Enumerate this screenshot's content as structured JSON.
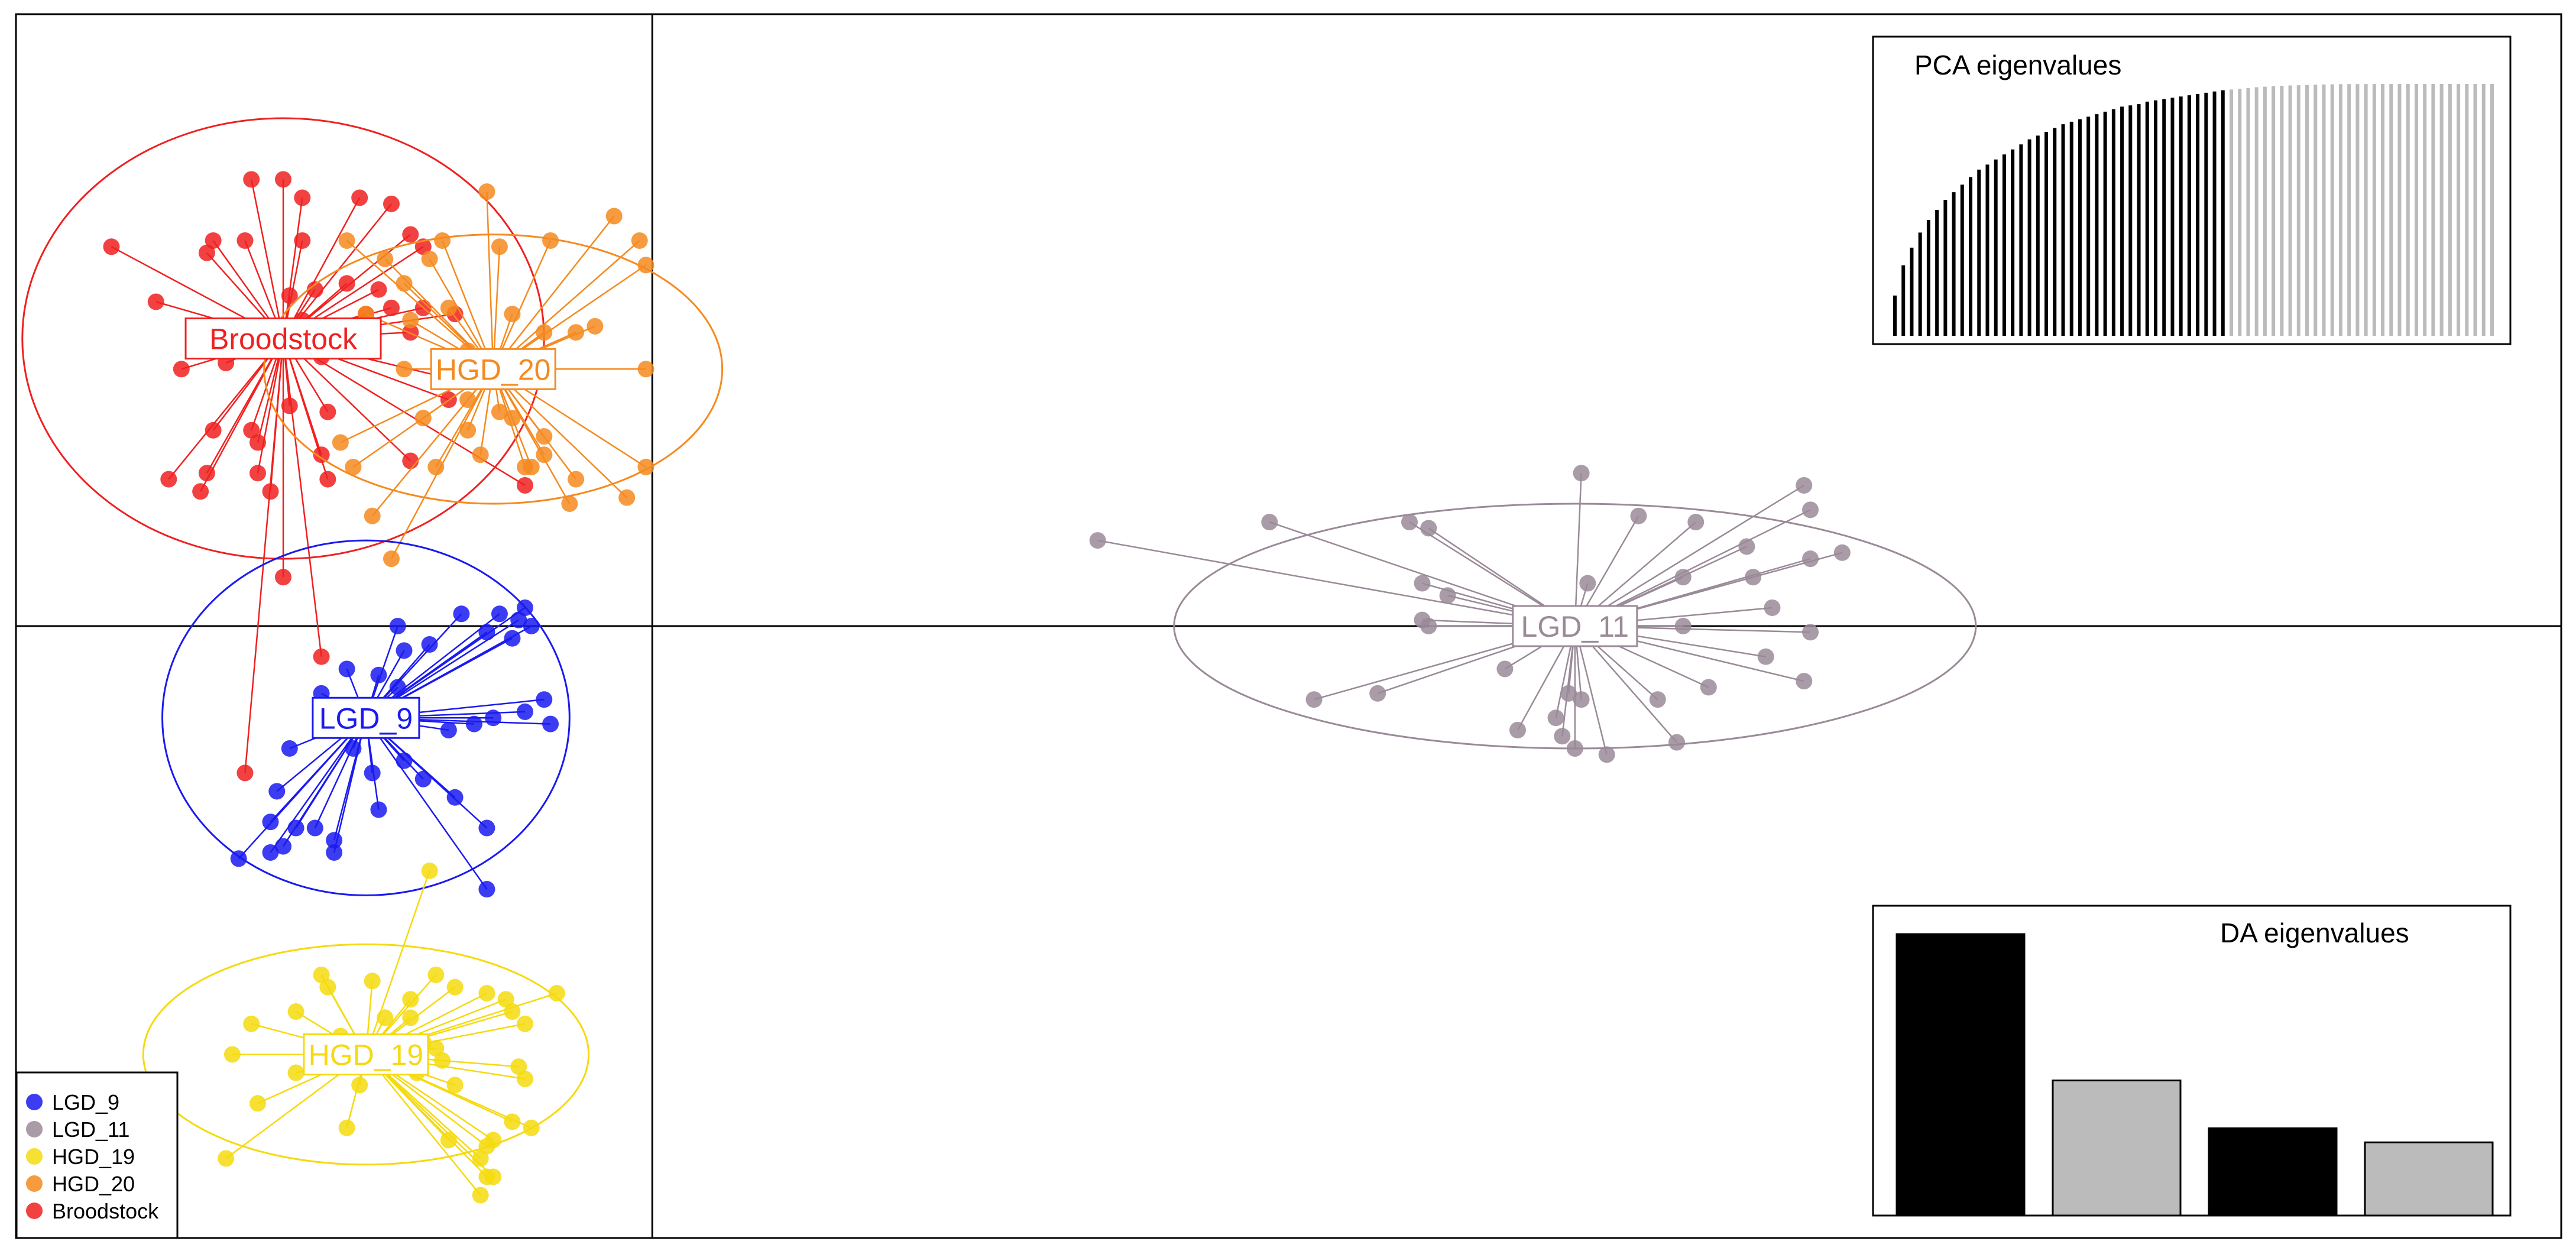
{
  "chart_data": {
    "type": "scatter",
    "title": "",
    "xlabel": "",
    "ylabel": "",
    "grid": false,
    "xlim": [
      -10,
      30
    ],
    "ylim": [
      -10,
      10
    ],
    "axes_cross": [
      0,
      0
    ],
    "legend_position": "bottom-left",
    "series": [
      {
        "name": "LGD_9",
        "color": "#1a1af0",
        "centroid": [
          -4.5,
          -1.5
        ],
        "ellipse_radii": [
          3.2,
          2.9
        ],
        "points": [
          [
            -2.1,
            0.1
          ],
          [
            -2.0,
            0.3
          ],
          [
            -1.9,
            0.0
          ],
          [
            -2.2,
            -0.2
          ],
          [
            -2.4,
            0.2
          ],
          [
            -2.6,
            -0.1
          ],
          [
            -3.0,
            0.2
          ],
          [
            -3.5,
            -0.3
          ],
          [
            -3.9,
            -0.4
          ],
          [
            -4.0,
            0.0
          ],
          [
            -4.3,
            -0.8
          ],
          [
            -4.0,
            -1.0
          ],
          [
            -4.8,
            -0.7
          ],
          [
            -5.2,
            -1.1
          ],
          [
            -4.9,
            -1.4
          ],
          [
            -4.5,
            -1.5
          ],
          [
            -3.2,
            -1.7
          ],
          [
            -2.8,
            -1.6
          ],
          [
            -2.5,
            -1.5
          ],
          [
            -2.0,
            -1.4
          ],
          [
            -1.7,
            -1.2
          ],
          [
            -1.6,
            -1.6
          ],
          [
            -3.9,
            -2.2
          ],
          [
            -4.4,
            -2.4
          ],
          [
            -5.7,
            -2.0
          ],
          [
            -5.9,
            -2.7
          ],
          [
            -6.0,
            -3.2
          ],
          [
            -5.6,
            -3.3
          ],
          [
            -5.3,
            -3.3
          ],
          [
            -5.0,
            -3.5
          ],
          [
            -4.3,
            -3.0
          ],
          [
            -3.6,
            -2.5
          ],
          [
            -3.1,
            -2.8
          ],
          [
            -2.6,
            -3.3
          ],
          [
            -2.6,
            -4.3
          ],
          [
            -5.8,
            -3.6
          ],
          [
            -5.0,
            -3.7
          ],
          [
            -6.0,
            -3.7
          ],
          [
            -6.5,
            -3.8
          ],
          [
            -4.7,
            -2.0
          ]
        ]
      },
      {
        "name": "LGD_11",
        "color": "#9a8a98",
        "centroid": [
          14.5,
          0.0
        ],
        "ellipse_radii": [
          6.3,
          2.0
        ],
        "points": [
          [
            7.0,
            1.4
          ],
          [
            9.7,
            1.7
          ],
          [
            11.9,
            1.7
          ],
          [
            12.2,
            1.6
          ],
          [
            14.6,
            2.5
          ],
          [
            15.5,
            1.8
          ],
          [
            16.4,
            1.7
          ],
          [
            17.2,
            1.3
          ],
          [
            18.1,
            2.3
          ],
          [
            18.2,
            1.9
          ],
          [
            18.7,
            1.2
          ],
          [
            18.2,
            1.1
          ],
          [
            17.3,
            0.8
          ],
          [
            16.2,
            0.8
          ],
          [
            14.7,
            0.7
          ],
          [
            12.1,
            0.7
          ],
          [
            12.5,
            0.5
          ],
          [
            12.1,
            0.1
          ],
          [
            12.2,
            0.0
          ],
          [
            16.2,
            0.0
          ],
          [
            17.6,
            0.3
          ],
          [
            18.2,
            -0.1
          ],
          [
            17.5,
            -0.5
          ],
          [
            18.1,
            -0.9
          ],
          [
            16.6,
            -1.0
          ],
          [
            15.8,
            -1.2
          ],
          [
            14.4,
            -1.1
          ],
          [
            14.6,
            -1.2
          ],
          [
            14.3,
            -1.8
          ],
          [
            14.2,
            -1.5
          ],
          [
            13.6,
            -1.7
          ],
          [
            11.4,
            -1.1
          ],
          [
            10.4,
            -1.2
          ],
          [
            15.0,
            -2.1
          ],
          [
            16.1,
            -1.9
          ],
          [
            13.4,
            -0.7
          ],
          [
            14.5,
            -2.0
          ]
        ]
      },
      {
        "name": "HGD_19",
        "color": "#f5da0e",
        "centroid": [
          -4.5,
          -7.0
        ],
        "ellipse_radii": [
          3.5,
          1.8
        ],
        "points": [
          [
            -3.5,
            -4.0
          ],
          [
            -5.2,
            -5.7
          ],
          [
            -5.1,
            -5.9
          ],
          [
            -4.4,
            -5.8
          ],
          [
            -3.4,
            -5.7
          ],
          [
            -3.8,
            -6.1
          ],
          [
            -3.1,
            -5.9
          ],
          [
            -2.6,
            -6.0
          ],
          [
            -2.3,
            -6.1
          ],
          [
            -1.5,
            -6.0
          ],
          [
            -2.2,
            -6.3
          ],
          [
            -2.0,
            -6.5
          ],
          [
            -3.8,
            -6.4
          ],
          [
            -4.2,
            -6.4
          ],
          [
            -5.6,
            -6.3
          ],
          [
            -6.3,
            -6.5
          ],
          [
            -4.9,
            -6.7
          ],
          [
            -3.6,
            -6.8
          ],
          [
            -3.4,
            -6.9
          ],
          [
            -3.3,
            -7.1
          ],
          [
            -2.1,
            -7.2
          ],
          [
            -3.1,
            -7.5
          ],
          [
            -3.7,
            -7.3
          ],
          [
            -4.6,
            -7.5
          ],
          [
            -5.6,
            -7.3
          ],
          [
            -6.6,
            -7.0
          ],
          [
            -6.2,
            -7.8
          ],
          [
            -4.8,
            -8.2
          ],
          [
            -3.2,
            -8.4
          ],
          [
            -2.6,
            -8.5
          ],
          [
            -1.9,
            -8.2
          ],
          [
            -6.7,
            -8.7
          ],
          [
            -2.6,
            -9.0
          ],
          [
            -2.7,
            -9.3
          ],
          [
            -2.7,
            -8.7
          ],
          [
            -2.5,
            -9.0
          ],
          [
            -2.5,
            -8.4
          ],
          [
            -2.2,
            -8.1
          ],
          [
            -2.0,
            -7.4
          ]
        ]
      },
      {
        "name": "HGD_20",
        "color": "#f58a1f",
        "centroid": [
          -2.5,
          4.2
        ],
        "ellipse_radii": [
          3.6,
          2.2
        ],
        "points": [
          [
            -2.6,
            7.1
          ],
          [
            -0.6,
            6.7
          ],
          [
            -0.2,
            6.3
          ],
          [
            -0.1,
            5.9
          ],
          [
            -3.3,
            6.3
          ],
          [
            -2.4,
            6.2
          ],
          [
            -1.6,
            6.3
          ],
          [
            -4.8,
            6.3
          ],
          [
            -3.5,
            6.0
          ],
          [
            -4.2,
            6.0
          ],
          [
            -3.9,
            5.6
          ],
          [
            -0.9,
            4.9
          ],
          [
            -1.2,
            4.8
          ],
          [
            -1.7,
            4.8
          ],
          [
            -2.2,
            5.1
          ],
          [
            -4.5,
            5.1
          ],
          [
            -3.2,
            5.2
          ],
          [
            -3.8,
            5.0
          ],
          [
            -2.9,
            4.5
          ],
          [
            -2.6,
            4.4
          ],
          [
            -2.5,
            4.3
          ],
          [
            -3.2,
            4.2
          ],
          [
            -3.9,
            4.2
          ],
          [
            -0.1,
            4.2
          ],
          [
            -2.9,
            3.7
          ],
          [
            -2.4,
            3.5
          ],
          [
            -2.2,
            3.4
          ],
          [
            -3.6,
            3.4
          ],
          [
            -2.9,
            3.2
          ],
          [
            -1.7,
            3.1
          ],
          [
            -4.9,
            3.0
          ],
          [
            -3.4,
            2.6
          ],
          [
            -2.7,
            2.8
          ],
          [
            -1.7,
            2.8
          ],
          [
            -1.9,
            2.6
          ],
          [
            -4.7,
            2.6
          ],
          [
            -1.2,
            2.4
          ],
          [
            -1.3,
            2.0
          ],
          [
            -4.4,
            1.8
          ],
          [
            -2.0,
            2.6
          ],
          [
            -0.1,
            2.6
          ],
          [
            -0.4,
            2.1
          ],
          [
            -4.1,
            1.1
          ]
        ]
      },
      {
        "name": "Broodstock",
        "color": "#f02020",
        "centroid": [
          -5.8,
          4.7
        ],
        "ellipse_radii": [
          4.1,
          3.6
        ],
        "points": [
          [
            -8.5,
            6.2
          ],
          [
            -6.3,
            7.3
          ],
          [
            -5.8,
            7.3
          ],
          [
            -5.5,
            7.0
          ],
          [
            -4.6,
            7.0
          ],
          [
            -4.1,
            6.9
          ],
          [
            -6.9,
            6.3
          ],
          [
            -6.4,
            6.3
          ],
          [
            -7.0,
            6.1
          ],
          [
            -5.5,
            6.3
          ],
          [
            -3.8,
            6.4
          ],
          [
            -3.6,
            6.2
          ],
          [
            -4.8,
            5.6
          ],
          [
            -4.3,
            5.5
          ],
          [
            -5.3,
            5.5
          ],
          [
            -5.7,
            5.4
          ],
          [
            -5.5,
            5.0
          ],
          [
            -4.1,
            5.2
          ],
          [
            -7.8,
            5.3
          ],
          [
            -4.5,
            5.1
          ],
          [
            -3.6,
            5.2
          ],
          [
            -3.1,
            5.1
          ],
          [
            -3.8,
            4.8
          ],
          [
            -6.5,
            4.8
          ],
          [
            -5.6,
            4.7
          ],
          [
            -7.4,
            4.2
          ],
          [
            -6.7,
            4.3
          ],
          [
            -5.2,
            4.4
          ],
          [
            -3.0,
            4.0
          ],
          [
            -3.2,
            3.7
          ],
          [
            -5.7,
            3.6
          ],
          [
            -5.1,
            3.5
          ],
          [
            -6.9,
            3.2
          ],
          [
            -6.3,
            3.2
          ],
          [
            -6.2,
            3.0
          ],
          [
            -7.0,
            2.5
          ],
          [
            -5.2,
            2.8
          ],
          [
            -3.8,
            2.7
          ],
          [
            -5.1,
            2.4
          ],
          [
            -6.0,
            2.2
          ],
          [
            -6.2,
            2.5
          ],
          [
            -7.6,
            2.4
          ],
          [
            -7.1,
            2.2
          ],
          [
            -2.0,
            2.3
          ],
          [
            -5.8,
            0.8
          ],
          [
            -5.2,
            -0.5
          ],
          [
            -6.4,
            -2.4
          ]
        ]
      }
    ],
    "insets": [
      {
        "title": "PCA eigenvalues",
        "type": "bar",
        "retained_color": "#000000",
        "other_color": "#bbbbbb",
        "retained_count": 40,
        "values": [
          0.16,
          0.28,
          0.35,
          0.41,
          0.46,
          0.5,
          0.54,
          0.57,
          0.6,
          0.63,
          0.66,
          0.68,
          0.7,
          0.72,
          0.74,
          0.76,
          0.78,
          0.795,
          0.81,
          0.825,
          0.84,
          0.85,
          0.86,
          0.87,
          0.88,
          0.89,
          0.9,
          0.91,
          0.915,
          0.92,
          0.93,
          0.935,
          0.94,
          0.945,
          0.95,
          0.955,
          0.96,
          0.965,
          0.97,
          0.975,
          0.978,
          0.981,
          0.984,
          0.987,
          0.989,
          0.991,
          0.993,
          0.994,
          0.995,
          0.996,
          0.997,
          0.998,
          0.9985,
          0.999,
          0.9993,
          0.9995,
          0.9997,
          0.9998,
          0.9999,
          1.0,
          1.0,
          1.0,
          1.0,
          1.0,
          1.0,
          1.0,
          1.0,
          1.0,
          1.0,
          1.0,
          1.0,
          1.0
        ]
      },
      {
        "title": "DA eigenvalues",
        "type": "bar",
        "values": [
          1.0,
          0.48,
          0.31,
          0.26
        ],
        "colors": [
          "#000000",
          "#bbbbbb",
          "#000000",
          "#bbbbbb"
        ]
      }
    ]
  }
}
